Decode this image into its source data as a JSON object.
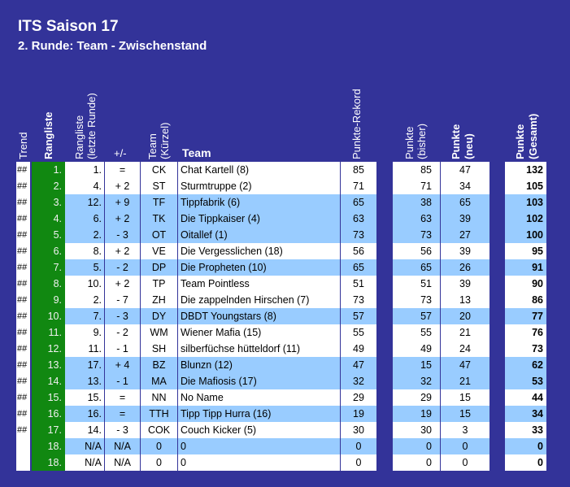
{
  "title": "ITS Saison 17",
  "subtitle": "2. Runde: Team - Zwischenstand",
  "headers": {
    "trend": "Trend",
    "rang": "Rangliste",
    "last": "Rangliste",
    "last2": "(letzte Runde)",
    "pm": "+/-",
    "kurz": "Team",
    "kurz2": "(Kürzel)",
    "team": "Team",
    "rekord": "Punkte-Rekord",
    "bisher": "Punkte",
    "bisher2": "(bisher)",
    "neu": "Punkte",
    "neu2": "(neu)",
    "gesamt": "Punkte",
    "gesamt2": "(Gesamt)"
  },
  "colors": {
    "background": "#333399",
    "rank_column": "#118811",
    "highlight_row": "#99ccff"
  },
  "rows": [
    {
      "trend": "##",
      "rank": "1.",
      "last": "1.",
      "pm": "=",
      "code": "CK",
      "team": "Chat Kartell (8)",
      "rekord": "85",
      "bisher": "85",
      "neu": "47",
      "gesamt": "132",
      "lt": false
    },
    {
      "trend": "##",
      "rank": "2.",
      "last": "4.",
      "pm": "+ 2",
      "code": "ST",
      "team": "Sturmtruppe (2)",
      "rekord": "71",
      "bisher": "71",
      "neu": "34",
      "gesamt": "105",
      "lt": false
    },
    {
      "trend": "##",
      "rank": "3.",
      "last": "12.",
      "pm": "+ 9",
      "code": "TF",
      "team": "Tippfabrik (6)",
      "rekord": "65",
      "bisher": "38",
      "neu": "65",
      "gesamt": "103",
      "lt": true
    },
    {
      "trend": "##",
      "rank": "4.",
      "last": "6.",
      "pm": "+ 2",
      "code": "TK",
      "team": "Die Tippkaiser (4)",
      "rekord": "63",
      "bisher": "63",
      "neu": "39",
      "gesamt": "102",
      "lt": true
    },
    {
      "trend": "##",
      "rank": "5.",
      "last": "2.",
      "pm": "- 3",
      "code": "OT",
      "team": "Oitallef (1)",
      "rekord": "73",
      "bisher": "73",
      "neu": "27",
      "gesamt": "100",
      "lt": true
    },
    {
      "trend": "##",
      "rank": "6.",
      "last": "8.",
      "pm": "+ 2",
      "code": "VE",
      "team": "Die Vergesslichen (18)",
      "rekord": "56",
      "bisher": "56",
      "neu": "39",
      "gesamt": "95",
      "lt": false
    },
    {
      "trend": "##",
      "rank": "7.",
      "last": "5.",
      "pm": "- 2",
      "code": "DP",
      "team": "Die Propheten (10)",
      "rekord": "65",
      "bisher": "65",
      "neu": "26",
      "gesamt": "91",
      "lt": true
    },
    {
      "trend": "##",
      "rank": "8.",
      "last": "10.",
      "pm": "+ 2",
      "code": "TP",
      "team": "Team Pointless",
      "rekord": "51",
      "bisher": "51",
      "neu": "39",
      "gesamt": "90",
      "lt": false
    },
    {
      "trend": "##",
      "rank": "9.",
      "last": "2.",
      "pm": "- 7",
      "code": "ZH",
      "team": "Die zappelnden Hirschen (7)",
      "rekord": "73",
      "bisher": "73",
      "neu": "13",
      "gesamt": "86",
      "lt": false
    },
    {
      "trend": "##",
      "rank": "10.",
      "last": "7.",
      "pm": "- 3",
      "code": "DY",
      "team": "DBDT Youngstars (8)",
      "rekord": "57",
      "bisher": "57",
      "neu": "20",
      "gesamt": "77",
      "lt": true
    },
    {
      "trend": "##",
      "rank": "11.",
      "last": "9.",
      "pm": "- 2",
      "code": "WM",
      "team": "Wiener Mafia (15)",
      "rekord": "55",
      "bisher": "55",
      "neu": "21",
      "gesamt": "76",
      "lt": false
    },
    {
      "trend": "##",
      "rank": "12.",
      "last": "11.",
      "pm": "- 1",
      "code": "SH",
      "team": "silberfüchse hütteldorf (11)",
      "rekord": "49",
      "bisher": "49",
      "neu": "24",
      "gesamt": "73",
      "lt": false
    },
    {
      "trend": "##",
      "rank": "13.",
      "last": "17.",
      "pm": "+ 4",
      "code": "BZ",
      "team": "Blunzn (12)",
      "rekord": "47",
      "bisher": "15",
      "neu": "47",
      "gesamt": "62",
      "lt": true
    },
    {
      "trend": "##",
      "rank": "14.",
      "last": "13.",
      "pm": "- 1",
      "code": "MA",
      "team": "Die Mafiosis (17)",
      "rekord": "32",
      "bisher": "32",
      "neu": "21",
      "gesamt": "53",
      "lt": true
    },
    {
      "trend": "##",
      "rank": "15.",
      "last": "15.",
      "pm": "=",
      "code": "NN",
      "team": "No Name",
      "rekord": "29",
      "bisher": "29",
      "neu": "15",
      "gesamt": "44",
      "lt": false
    },
    {
      "trend": "##",
      "rank": "16.",
      "last": "16.",
      "pm": "=",
      "code": "TTH",
      "team": "Tipp Tipp Hurra (16)",
      "rekord": "19",
      "bisher": "19",
      "neu": "15",
      "gesamt": "34",
      "lt": true
    },
    {
      "trend": "##",
      "rank": "17.",
      "last": "14.",
      "pm": "- 3",
      "code": "COK",
      "team": "Couch Kicker (5)",
      "rekord": "30",
      "bisher": "30",
      "neu": "3",
      "gesamt": "33",
      "lt": false
    },
    {
      "trend": "",
      "rank": "18.",
      "last": "N/A",
      "pm": "N/A",
      "code": "0",
      "team": "0",
      "rekord": "0",
      "bisher": "0",
      "neu": "0",
      "gesamt": "0",
      "lt": true
    },
    {
      "trend": "",
      "rank": "18.",
      "last": "N/A",
      "pm": "N/A",
      "code": "0",
      "team": "0",
      "rekord": "0",
      "bisher": "0",
      "neu": "0",
      "gesamt": "0",
      "lt": false
    }
  ]
}
